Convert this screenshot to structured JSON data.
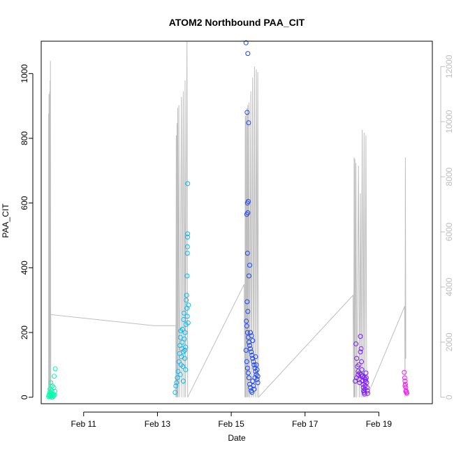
{
  "chart_data": {
    "type": "scatter",
    "title": "ATOM2 Northbound PAA_CIT",
    "xlabel": "Date",
    "ylabel": "PAA_CIT",
    "x_unit": "date (day of February)",
    "xlim": [
      9.85,
      20.45
    ],
    "ylim": [
      -20,
      1100
    ],
    "x_ticks": [
      {
        "value": 11,
        "label": "Feb 11"
      },
      {
        "value": 13,
        "label": "Feb 13"
      },
      {
        "value": 15,
        "label": "Feb 15"
      },
      {
        "value": 17,
        "label": "Feb 17"
      },
      {
        "value": 19,
        "label": "Feb 19"
      }
    ],
    "y_ticks": [
      0,
      200,
      400,
      600,
      800,
      1000
    ],
    "y2_ticks": [
      0,
      2000,
      4000,
      6000,
      8000,
      10000,
      12000
    ],
    "y2lim": [
      -235,
      12920
    ],
    "grid": false,
    "colors": {
      "secondary_line": "#bebebe",
      "right_axis_text": "#bebebe",
      "axis": "#000000"
    },
    "series": [
      {
        "color": "#00ffaa",
        "marker": "open-circle",
        "points": [
          [
            10.05,
            2
          ],
          [
            10.07,
            8
          ],
          [
            10.08,
            15
          ],
          [
            10.09,
            25
          ],
          [
            10.1,
            3
          ],
          [
            10.11,
            45
          ],
          [
            10.12,
            12
          ],
          [
            10.13,
            5
          ],
          [
            10.14,
            20
          ],
          [
            10.15,
            35
          ],
          [
            10.16,
            1
          ],
          [
            10.17,
            10
          ],
          [
            10.18,
            4
          ],
          [
            10.19,
            30
          ],
          [
            10.2,
            65
          ],
          [
            10.21,
            7
          ],
          [
            10.22,
            18
          ],
          [
            10.23,
            88
          ],
          [
            10.13,
            0
          ],
          [
            10.06,
            6
          ]
        ]
      },
      {
        "color": "#00bbff",
        "marker": "open-circle",
        "points": [
          [
            13.48,
            15
          ],
          [
            13.5,
            35
          ],
          [
            13.52,
            45
          ],
          [
            13.54,
            60
          ],
          [
            13.56,
            80
          ],
          [
            13.58,
            110
          ],
          [
            13.6,
            135
          ],
          [
            13.61,
            160
          ],
          [
            13.62,
            185
          ],
          [
            13.63,
            205
          ],
          [
            13.64,
            100
          ],
          [
            13.65,
            125
          ],
          [
            13.66,
            150
          ],
          [
            13.67,
            170
          ],
          [
            13.68,
            210
          ],
          [
            13.69,
            95
          ],
          [
            13.7,
            140
          ],
          [
            13.71,
            240
          ],
          [
            13.72,
            260
          ],
          [
            13.73,
            180
          ],
          [
            13.74,
            120
          ],
          [
            13.75,
            200
          ],
          [
            13.76,
            155
          ],
          [
            13.77,
            225
          ],
          [
            13.78,
            300
          ],
          [
            13.79,
            315
          ],
          [
            13.8,
            275
          ],
          [
            13.81,
            250
          ],
          [
            13.805,
            375
          ],
          [
            13.81,
            445
          ],
          [
            13.812,
            465
          ],
          [
            13.815,
            495
          ],
          [
            13.818,
            505
          ],
          [
            13.82,
            660
          ],
          [
            13.83,
            230
          ],
          [
            13.84,
            285
          ],
          [
            13.76,
            85
          ],
          [
            13.7,
            50
          ],
          [
            13.62,
            70
          ],
          [
            13.74,
            145
          ]
        ]
      },
      {
        "color": "#1a44ff",
        "marker": "open-circle",
        "points": [
          [
            15.4,
            1095
          ],
          [
            15.43,
            880
          ],
          [
            15.45,
            1062
          ],
          [
            15.47,
            848
          ],
          [
            15.44,
            600
          ],
          [
            15.46,
            605
          ],
          [
            15.42,
            565
          ],
          [
            15.45,
            570
          ],
          [
            15.44,
            445
          ],
          [
            15.48,
            375
          ],
          [
            15.5,
            408
          ],
          [
            15.43,
            295
          ],
          [
            15.45,
            265
          ],
          [
            15.41,
            235
          ],
          [
            15.42,
            220
          ],
          [
            15.44,
            200
          ],
          [
            15.46,
            185
          ],
          [
            15.48,
            170
          ],
          [
            15.5,
            160
          ],
          [
            15.52,
            150
          ],
          [
            15.54,
            140
          ],
          [
            15.56,
            130
          ],
          [
            15.58,
            120
          ],
          [
            15.6,
            110
          ],
          [
            15.62,
            100
          ],
          [
            15.64,
            90
          ],
          [
            15.66,
            80
          ],
          [
            15.68,
            70
          ],
          [
            15.7,
            55
          ],
          [
            15.72,
            45
          ],
          [
            15.4,
            145
          ],
          [
            15.42,
            110
          ],
          [
            15.44,
            90
          ],
          [
            15.46,
            75
          ],
          [
            15.48,
            60
          ],
          [
            15.5,
            40
          ],
          [
            15.52,
            30
          ],
          [
            15.54,
            20
          ],
          [
            15.56,
            15
          ],
          [
            15.58,
            50
          ],
          [
            15.6,
            35
          ],
          [
            15.62,
            25
          ],
          [
            15.64,
            60
          ],
          [
            15.66,
            125
          ],
          [
            15.68,
            100
          ],
          [
            15.7,
            85
          ],
          [
            15.72,
            65
          ],
          [
            15.58,
            175
          ],
          [
            15.55,
            190
          ],
          [
            15.52,
            200
          ]
        ]
      },
      {
        "color": "#7a1aff",
        "marker": "open-circle",
        "points": [
          [
            18.38,
            165
          ],
          [
            18.4,
            120
          ],
          [
            18.42,
            95
          ],
          [
            18.44,
            70
          ],
          [
            18.46,
            55
          ],
          [
            18.48,
            45
          ],
          [
            18.5,
            188
          ],
          [
            18.52,
            150
          ],
          [
            18.53,
            110
          ],
          [
            18.54,
            85
          ],
          [
            18.55,
            65
          ],
          [
            18.56,
            50
          ],
          [
            18.57,
            40
          ],
          [
            18.58,
            30
          ],
          [
            18.59,
            20
          ],
          [
            18.6,
            15
          ],
          [
            18.61,
            10
          ],
          [
            18.62,
            25
          ],
          [
            18.63,
            35
          ],
          [
            18.64,
            55
          ],
          [
            18.65,
            75
          ],
          [
            18.66,
            60
          ],
          [
            18.67,
            45
          ],
          [
            18.68,
            30
          ],
          [
            18.69,
            20
          ],
          [
            18.7,
            12
          ],
          [
            18.44,
            80
          ],
          [
            18.48,
            75
          ],
          [
            18.52,
            70
          ],
          [
            18.56,
            65
          ],
          [
            18.6,
            60
          ],
          [
            18.64,
            50
          ],
          [
            18.4,
            60
          ],
          [
            18.46,
            100
          ],
          [
            18.5,
            140
          ],
          [
            18.36,
            50
          ]
        ]
      },
      {
        "color": "#ee22ee",
        "marker": "open-circle",
        "points": [
          [
            19.69,
            77
          ],
          [
            19.7,
            60
          ],
          [
            19.71,
            50
          ],
          [
            19.72,
            40
          ],
          [
            19.73,
            30
          ],
          [
            19.74,
            20
          ],
          [
            19.75,
            15
          ],
          [
            19.76,
            12
          ],
          [
            19.71,
            35
          ],
          [
            19.73,
            18
          ]
        ]
      }
    ],
    "secondary_series": {
      "color": "#bebebe",
      "axis": "right",
      "points": [
        [
          10.05,
          0
        ],
        [
          10.05,
          10300
        ],
        [
          10.06,
          0
        ],
        [
          10.06,
          11000
        ],
        [
          10.07,
          0
        ],
        [
          10.07,
          10300
        ],
        [
          10.08,
          0
        ],
        [
          10.08,
          11100
        ],
        [
          10.09,
          0
        ],
        [
          10.09,
          11500
        ],
        [
          10.1,
          0
        ],
        [
          10.1,
          12200
        ],
        [
          10.11,
          0
        ],
        [
          10.11,
          3000
        ],
        [
          12.9,
          2600
        ],
        [
          13.5,
          2600
        ],
        [
          13.5,
          0
        ],
        [
          13.51,
          9500
        ],
        [
          13.52,
          0
        ],
        [
          13.53,
          9950
        ],
        [
          13.54,
          0
        ],
        [
          13.55,
          10500
        ],
        [
          13.56,
          0
        ],
        [
          13.58,
          10600
        ],
        [
          13.6,
          0
        ],
        [
          13.65,
          10900
        ],
        [
          13.66,
          0
        ],
        [
          13.7,
          11100
        ],
        [
          13.72,
          0
        ],
        [
          13.75,
          11500
        ],
        [
          13.76,
          0
        ],
        [
          13.8,
          12900
        ],
        [
          13.82,
          0
        ],
        [
          15.35,
          4100
        ],
        [
          15.37,
          0
        ],
        [
          15.38,
          10200
        ],
        [
          15.39,
          0
        ],
        [
          15.4,
          10300
        ],
        [
          15.41,
          0
        ],
        [
          15.43,
          10500
        ],
        [
          15.44,
          0
        ],
        [
          15.45,
          10600
        ],
        [
          15.46,
          0
        ],
        [
          15.48,
          10700
        ],
        [
          15.5,
          0
        ],
        [
          15.53,
          11100
        ],
        [
          15.55,
          0
        ],
        [
          15.58,
          11600
        ],
        [
          15.6,
          0
        ],
        [
          15.63,
          12000
        ],
        [
          15.65,
          0
        ],
        [
          15.68,
          11900
        ],
        [
          15.7,
          0
        ],
        [
          15.72,
          11800
        ],
        [
          15.74,
          0
        ],
        [
          18.3,
          3700
        ],
        [
          18.32,
          0
        ],
        [
          18.33,
          8700
        ],
        [
          18.34,
          0
        ],
        [
          18.35,
          8650
        ],
        [
          18.36,
          0
        ],
        [
          18.38,
          8500
        ],
        [
          18.4,
          0
        ],
        [
          18.45,
          8400
        ],
        [
          18.47,
          0
        ],
        [
          18.5,
          7400
        ],
        [
          18.52,
          0
        ],
        [
          18.55,
          9700
        ],
        [
          18.57,
          0
        ],
        [
          18.6,
          9600
        ],
        [
          18.62,
          0
        ],
        [
          18.65,
          9500
        ],
        [
          18.67,
          0
        ],
        [
          19.7,
          3300
        ],
        [
          19.71,
          0
        ],
        [
          19.72,
          8700
        ],
        [
          19.73,
          1400
        ]
      ]
    }
  }
}
